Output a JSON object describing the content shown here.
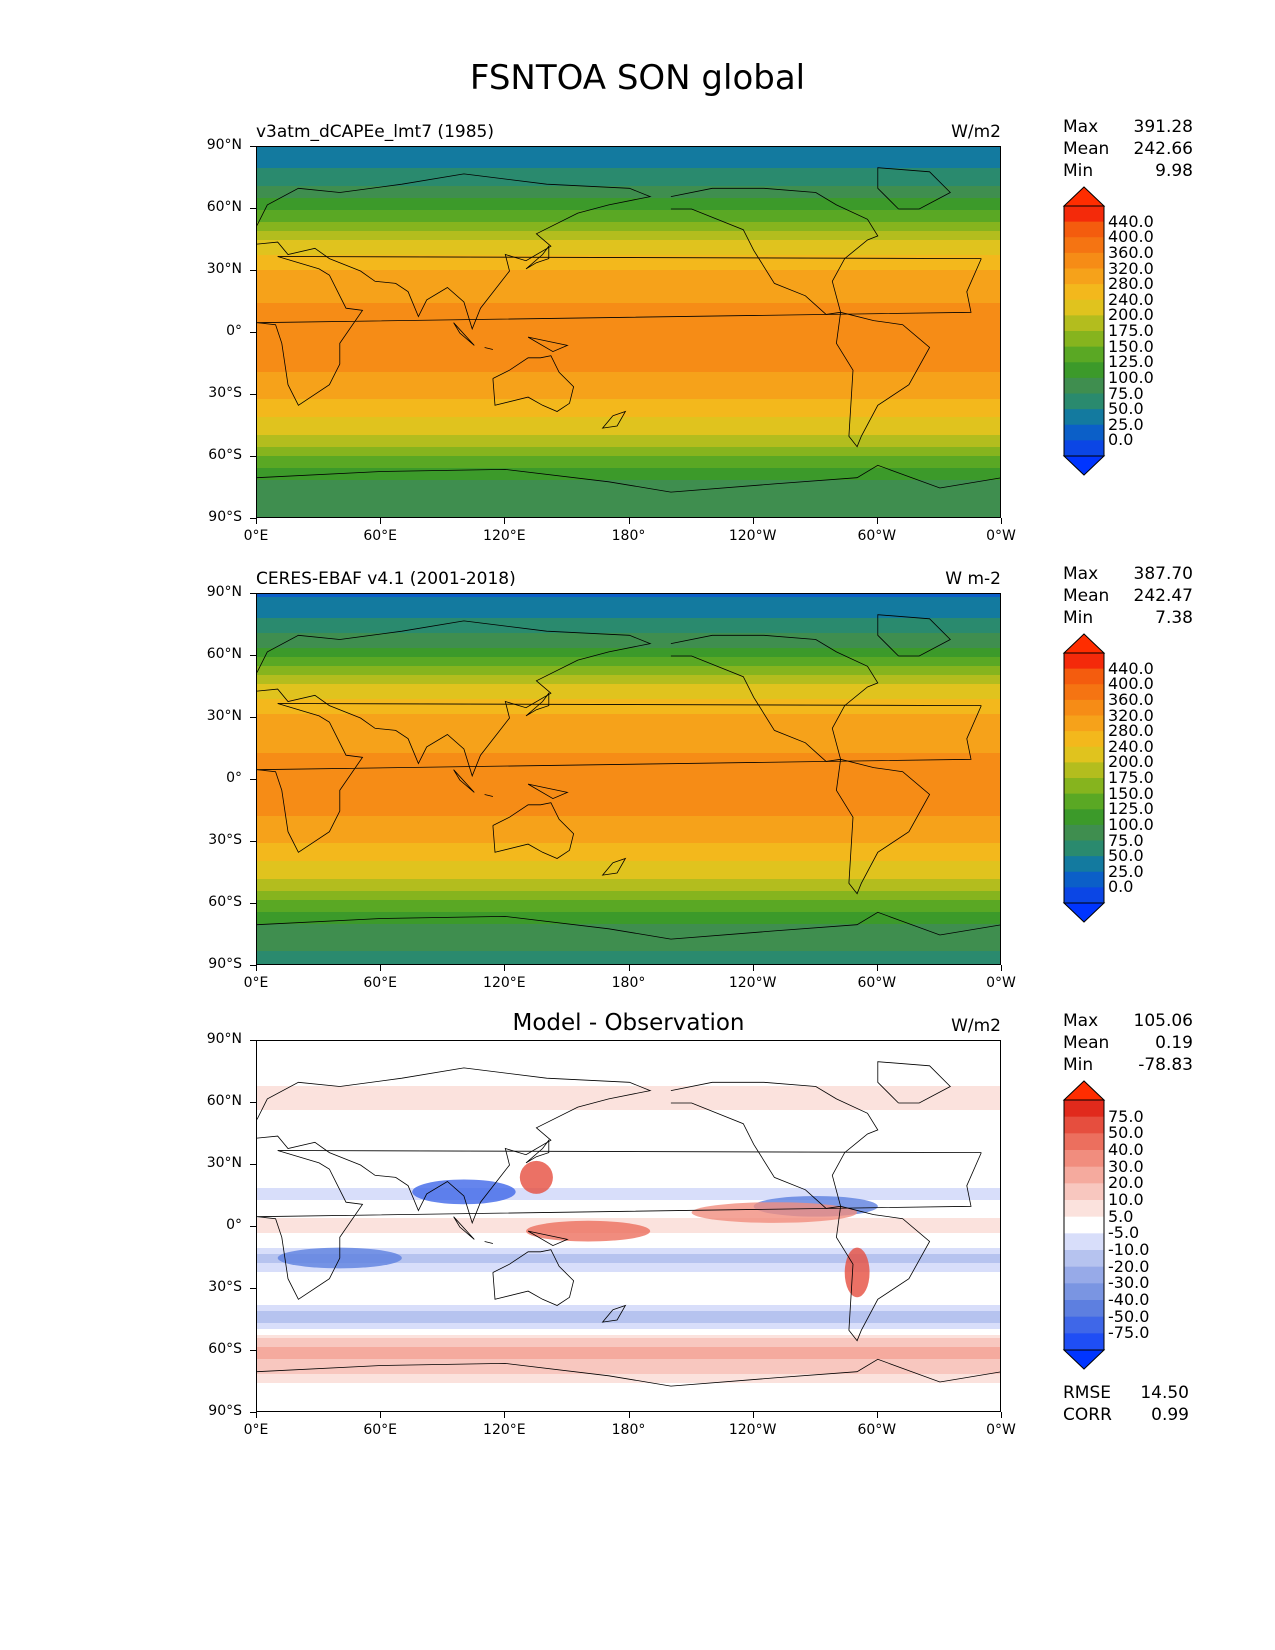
{
  "title": "FSNTOA SON global",
  "lat_ticks": [
    "90°N",
    "60°N",
    "30°N",
    "0°",
    "30°S",
    "60°S",
    "90°S"
  ],
  "lon_ticks": [
    "0°E",
    "60°E",
    "120°E",
    "180°",
    "120°W",
    "60°W",
    "0°W"
  ],
  "panels": [
    {
      "title": "v3atm_dCAPEe_lmt7 (1985)",
      "units": "W/m2",
      "stats": {
        "max_label": "Max",
        "max": "391.28",
        "mean_label": "Mean",
        "mean": "242.66",
        "min_label": "Min",
        "min": "9.98"
      }
    },
    {
      "title": "CERES-EBAF v4.1 (2001-2018)",
      "units": "W m-2",
      "stats": {
        "max_label": "Max",
        "max": "387.70",
        "mean_label": "Mean",
        "mean": "242.47",
        "min_label": "Min",
        "min": "7.38"
      }
    },
    {
      "title": "Model - Observation",
      "units": "W/m2",
      "stats": {
        "max_label": "Max",
        "max": "105.06",
        "mean_label": "Mean",
        "mean": "0.19",
        "min_label": "Min",
        "min": "-78.83"
      },
      "rmse_label": "RMSE",
      "rmse": "14.50",
      "corr_label": "CORR",
      "corr": "0.99"
    }
  ],
  "field_colorbar": {
    "levels": [
      "0.0",
      "25.0",
      "50.0",
      "75.0",
      "100.0",
      "125.0",
      "150.0",
      "175.0",
      "200.0",
      "240.0",
      "280.0",
      "320.0",
      "360.0",
      "400.0",
      "440.0"
    ],
    "colors": [
      "#0b46e5",
      "#0b5fc8",
      "#137a9f",
      "#2a8a6e",
      "#3f8e4f",
      "#3c9a2a",
      "#5aa824",
      "#86b41e",
      "#b3bd1e",
      "#e0c31e",
      "#f3b81c",
      "#f6a21a",
      "#f68c16",
      "#f57412",
      "#f45c0e",
      "#f42a0a"
    ],
    "under_color": "#0035ff",
    "over_color": "#ff2d00"
  },
  "diff_colorbar": {
    "levels": [
      "-75.0",
      "-50.0",
      "-40.0",
      "-30.0",
      "-20.0",
      "-10.0",
      "-5.0",
      "5.0",
      "10.0",
      "20.0",
      "30.0",
      "40.0",
      "50.0",
      "75.0"
    ],
    "colors": [
      "#1f4ef5",
      "#3f67e8",
      "#5d7fe0",
      "#7a95e2",
      "#97aae8",
      "#b6c3ef",
      "#d8defa",
      "#ffffff",
      "#fbe2dd",
      "#f8c7bf",
      "#f5aa9e",
      "#f18d7e",
      "#ec6f5e",
      "#e64e3e",
      "#e12a1c"
    ],
    "under_color": "#0035ff",
    "over_color": "#ff2d00"
  },
  "chart_data": [
    {
      "type": "heatmap",
      "title": "v3atm_dCAPEe_lmt7 (1985)",
      "units": "W/m2",
      "zonal_profile": {
        "lat": [
          90,
          75,
          60,
          45,
          30,
          15,
          0,
          -15,
          -30,
          -45,
          -60,
          -75,
          -90
        ],
        "value": [
          25,
          60,
          120,
          200,
          280,
          320,
          340,
          330,
          290,
          220,
          150,
          80,
          75
        ]
      },
      "xlim": [
        0,
        360
      ],
      "ylim": [
        -90,
        90
      ],
      "max": 391.28,
      "mean": 242.66,
      "min": 9.98
    },
    {
      "type": "heatmap",
      "title": "CERES-EBAF v4.1 (2001-2018)",
      "units": "W m-2",
      "zonal_profile": {
        "lat": [
          90,
          75,
          60,
          45,
          30,
          15,
          0,
          -15,
          -30,
          -45,
          -60,
          -75,
          -90
        ],
        "value": [
          22,
          58,
          118,
          205,
          290,
          318,
          330,
          325,
          285,
          215,
          140,
          78,
          72
        ]
      },
      "xlim": [
        0,
        360
      ],
      "ylim": [
        -90,
        90
      ],
      "max": 387.7,
      "mean": 242.47,
      "min": 7.38
    },
    {
      "type": "heatmap",
      "title": "Model - Observation",
      "units": "W/m2",
      "zonal_profile": {
        "lat": [
          90,
          75,
          60,
          45,
          30,
          15,
          0,
          -15,
          -30,
          -45,
          -60,
          -75,
          -90
        ],
        "value": [
          0,
          2,
          8,
          -5,
          5,
          -8,
          10,
          -12,
          5,
          -15,
          25,
          5,
          0
        ]
      },
      "xlim": [
        0,
        360
      ],
      "ylim": [
        -90,
        90
      ],
      "max": 105.06,
      "mean": 0.19,
      "min": -78.83,
      "rmse": 14.5,
      "corr": 0.99
    }
  ]
}
